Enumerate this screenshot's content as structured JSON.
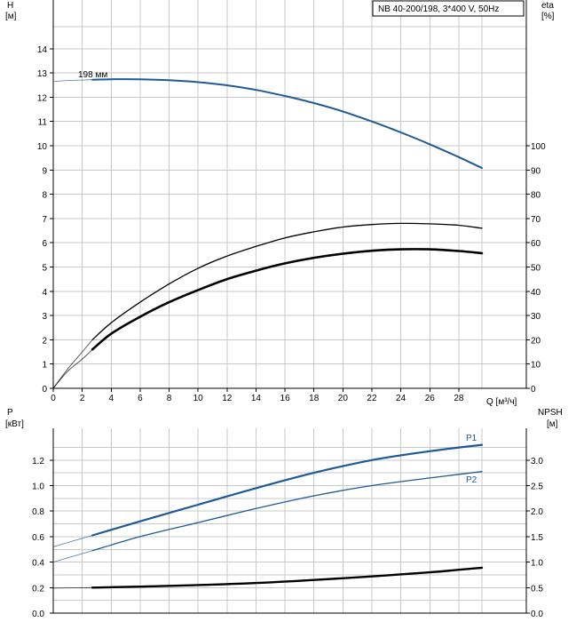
{
  "title": "NB 40-200/198, 3*400 V, 50Hz",
  "colors": {
    "blue": "#1f5a96",
    "black": "#000000",
    "grid": "#c8c8c8"
  },
  "chart_data": [
    {
      "type": "line",
      "panel": "top",
      "xlabel": "Q [м³/ч]",
      "xlim": [
        0,
        30
      ],
      "xticks": [
        0,
        2,
        4,
        6,
        8,
        10,
        12,
        14,
        16,
        18,
        20,
        22,
        24,
        26,
        28
      ],
      "y_left": {
        "label": "H",
        "unit": "[м]",
        "ylim": [
          0,
          15
        ],
        "ticks": [
          0,
          1,
          2,
          3,
          4,
          5,
          6,
          7,
          8,
          9,
          10,
          11,
          12,
          13,
          14
        ]
      },
      "y_right": {
        "label": "eta",
        "unit": "[%]",
        "ylim": [
          0,
          150
        ],
        "ticks": [
          0,
          10,
          20,
          30,
          40,
          50,
          60,
          70,
          80,
          90,
          100
        ]
      },
      "grid": true,
      "series": [
        {
          "name": "198 мм",
          "axis": "left",
          "color": "blue",
          "width": 2,
          "dashed_x": [
            0,
            2.7
          ],
          "x": [
            2.7,
            4,
            6,
            8,
            10,
            12,
            14,
            16,
            18,
            20,
            22,
            24,
            26,
            28,
            29.6
          ],
          "y": [
            12.72,
            12.74,
            12.74,
            12.7,
            12.62,
            12.49,
            12.3,
            12.05,
            11.76,
            11.41,
            11.0,
            10.55,
            10.06,
            9.53,
            9.08
          ],
          "ext_x": [
            0,
            1,
            2.7
          ],
          "ext_y": [
            12.65,
            12.69,
            12.72
          ]
        },
        {
          "axis": "right",
          "color": "black",
          "width": 1.3,
          "x": [
            2.7,
            4,
            6,
            8,
            10,
            12,
            14,
            16,
            18,
            20,
            22,
            24,
            26,
            28,
            29.6
          ],
          "y": [
            20,
            27,
            35.5,
            43,
            49.5,
            54.5,
            58.5,
            62,
            64.5,
            66.5,
            67.5,
            68,
            67.8,
            67.2,
            66
          ],
          "ext_x": [
            0,
            1,
            2,
            2.7
          ],
          "ext_y": [
            0,
            8,
            15,
            20
          ]
        },
        {
          "axis": "left",
          "color": "black",
          "width": 2.6,
          "x": [
            2.7,
            4,
            6,
            8,
            10,
            12,
            14,
            16,
            18,
            20,
            22,
            24,
            26,
            28,
            29.6
          ],
          "y": [
            1.6,
            2.25,
            2.95,
            3.55,
            4.05,
            4.5,
            4.85,
            5.15,
            5.38,
            5.55,
            5.67,
            5.73,
            5.73,
            5.66,
            5.57
          ],
          "ext_x": [
            0,
            1,
            2,
            2.7
          ],
          "ext_y": [
            0,
            0.7,
            1.2,
            1.6
          ]
        }
      ]
    },
    {
      "type": "line",
      "panel": "bottom",
      "xlim": [
        0,
        30
      ],
      "y_left": {
        "label": "P",
        "unit": "[кВт]",
        "ylim": [
          0,
          1.4
        ],
        "ticks": [
          "0.0",
          "0.2",
          "0.4",
          "0.6",
          "0.8",
          "1.0",
          "1.2"
        ]
      },
      "y_right": {
        "label": "NPSH",
        "unit": "[м]",
        "ylim": [
          0,
          3.5
        ],
        "ticks": [
          "0.0",
          "0.5",
          "1.0",
          "1.5",
          "2.0",
          "2.5",
          "3.0"
        ]
      },
      "grid": true,
      "series": [
        {
          "name": "P1",
          "axis": "left",
          "color": "blue",
          "width": 2.2,
          "x": [
            2.7,
            6,
            10,
            14,
            18,
            22,
            26,
            29.6
          ],
          "y": [
            0.61,
            0.72,
            0.85,
            0.98,
            1.1,
            1.2,
            1.27,
            1.32
          ],
          "ext_x": [
            0,
            2.7
          ],
          "ext_y": [
            0.52,
            0.61
          ]
        },
        {
          "name": "P2",
          "axis": "left",
          "color": "blue",
          "width": 1.3,
          "x": [
            2.7,
            6,
            10,
            14,
            18,
            22,
            26,
            29.6
          ],
          "y": [
            0.49,
            0.6,
            0.71,
            0.82,
            0.92,
            1.0,
            1.06,
            1.11
          ],
          "ext_x": [
            0,
            2.7
          ],
          "ext_y": [
            0.4,
            0.49
          ]
        },
        {
          "axis": "right",
          "color": "black",
          "width": 2.4,
          "x": [
            2.7,
            6,
            10,
            14,
            18,
            22,
            26,
            29.6
          ],
          "y": [
            0.5,
            0.52,
            0.55,
            0.59,
            0.65,
            0.72,
            0.8,
            0.89
          ],
          "ext_x": [
            0,
            2.7
          ],
          "ext_y": [
            0.49,
            0.5
          ]
        }
      ]
    }
  ]
}
